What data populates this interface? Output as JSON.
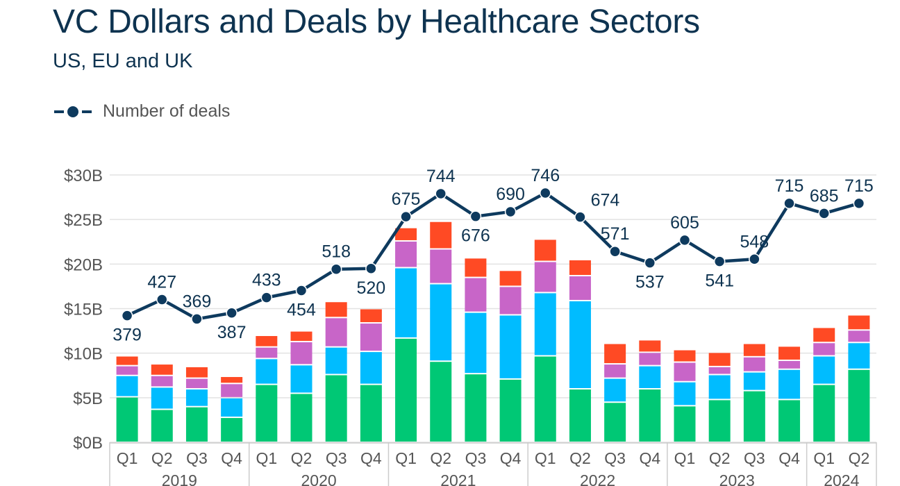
{
  "chart_data": {
    "type": "bar",
    "stacked": true,
    "title": "VC Dollars and Deals by Healthcare Sectors",
    "subtitle": "US, EU and UK",
    "legend": {
      "entries": [
        "Number of deals"
      ],
      "placement": "top-left"
    },
    "categories": [
      "Q1",
      "Q2",
      "Q3",
      "Q4",
      "Q1",
      "Q2",
      "Q3",
      "Q4",
      "Q1",
      "Q2",
      "Q3",
      "Q4",
      "Q1",
      "Q2",
      "Q3",
      "Q4",
      "Q1",
      "Q2",
      "Q3",
      "Q4",
      "Q1",
      "Q2"
    ],
    "year_groups": [
      {
        "label": "2019",
        "count": 4
      },
      {
        "label": "2020",
        "count": 4
      },
      {
        "label": "2021",
        "count": 4
      },
      {
        "label": "2022",
        "count": 4
      },
      {
        "label": "2023",
        "count": 4
      },
      {
        "label": "2024",
        "count": 2
      }
    ],
    "y_axis": {
      "ticks": [
        "$0B",
        "$5B",
        "$10B",
        "$15B",
        "$20B",
        "$25B",
        "$30B"
      ],
      "ylim": [
        0,
        30
      ],
      "unit": "$B",
      "grid": true
    },
    "series": [
      {
        "color": "#00c875",
        "values": [
          5.1,
          3.7,
          4.0,
          2.8,
          6.5,
          5.5,
          7.6,
          6.5,
          11.7,
          9.1,
          7.7,
          7.1,
          9.7,
          6.0,
          4.5,
          6.0,
          4.1,
          4.8,
          5.8,
          4.8,
          6.5,
          8.2
        ]
      },
      {
        "color": "#00bcff",
        "values": [
          2.4,
          2.5,
          2.0,
          2.2,
          2.9,
          3.2,
          3.1,
          3.7,
          7.9,
          8.7,
          6.9,
          7.2,
          7.1,
          9.9,
          2.7,
          2.6,
          2.7,
          2.8,
          2.1,
          3.4,
          3.2,
          3.0
        ]
      },
      {
        "color": "#c865c8",
        "values": [
          1.1,
          1.3,
          1.2,
          1.6,
          1.3,
          2.6,
          3.3,
          3.2,
          3.0,
          3.9,
          3.9,
          3.2,
          3.5,
          2.8,
          1.6,
          1.5,
          2.2,
          0.9,
          1.7,
          1.0,
          1.5,
          1.4
        ]
      },
      {
        "color": "#ff4a24",
        "values": [
          1.1,
          1.3,
          1.3,
          0.8,
          1.3,
          1.2,
          1.8,
          1.6,
          1.5,
          3.1,
          2.2,
          1.8,
          2.5,
          1.8,
          2.3,
          1.4,
          1.4,
          1.6,
          1.5,
          1.6,
          1.7,
          1.7
        ]
      }
    ],
    "line_series": {
      "name": "Number of deals",
      "color": "#0e3a5e",
      "secondary_ylim": [
        0,
        800
      ],
      "values": [
        379,
        427,
        369,
        387,
        433,
        454,
        518,
        520,
        675,
        744,
        676,
        690,
        746,
        674,
        571,
        537,
        605,
        541,
        548,
        715,
        685,
        715
      ],
      "label_positions": [
        "below",
        "above",
        "above",
        "below",
        "above",
        "below",
        "above",
        "below",
        "above",
        "above",
        "below",
        "above",
        "above",
        "above-right",
        "above",
        "below",
        "above",
        "below",
        "above",
        "above",
        "above",
        "above"
      ]
    }
  }
}
